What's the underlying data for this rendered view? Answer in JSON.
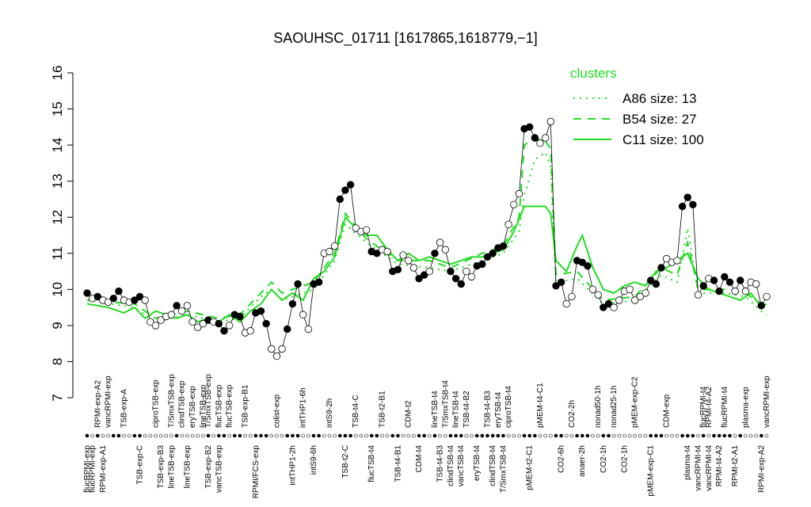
{
  "chart_data": {
    "type": "line",
    "title": "SAOUHSC_01711 [1617865,1618779,−1]",
    "ylim": [
      7,
      16
    ],
    "yticks": [
      7,
      8,
      9,
      10,
      11,
      12,
      13,
      14,
      15,
      16
    ],
    "xlim": [
      1,
      130
    ],
    "color": "#000000",
    "values": [
      9.9,
      9.75,
      9.8,
      9.7,
      9.65,
      9.75,
      9.95,
      9.7,
      9.65,
      9.7,
      9.8,
      9.7,
      9.1,
      9.0,
      9.15,
      9.25,
      9.3,
      9.55,
      9.4,
      9.55,
      9.1,
      8.95,
      9.05,
      9.15,
      9.1,
      9.05,
      8.85,
      9.0,
      9.3,
      9.25,
      8.8,
      8.85,
      9.35,
      9.4,
      9.05,
      8.35,
      8.15,
      8.35,
      8.9,
      9.6,
      10.15,
      9.3,
      8.9,
      10.15,
      10.2,
      11.0,
      11.05,
      11.2,
      12.5,
      12.75,
      12.9,
      11.7,
      11.6,
      11.65,
      11.05,
      11.0,
      11.1,
      11.05,
      10.5,
      10.55,
      10.95,
      10.8,
      10.6,
      10.3,
      10.4,
      10.5,
      11.0,
      11.3,
      11.1,
      10.5,
      10.3,
      10.15,
      10.5,
      10.35,
      10.65,
      10.7,
      10.9,
      11.0,
      11.15,
      11.2,
      11.8,
      12.35,
      12.65,
      14.45,
      14.5,
      14.2,
      14.05,
      14.2,
      14.65,
      10.1,
      10.2,
      9.6,
      9.8,
      10.8,
      10.75,
      10.65,
      10.0,
      9.85,
      9.5,
      9.6,
      9.5,
      9.7,
      9.95,
      10.0,
      9.7,
      9.8,
      9.9,
      10.25,
      10.15,
      10.6,
      10.85,
      10.75,
      10.8,
      12.3,
      12.55,
      12.35,
      9.85,
      10.1,
      10.3,
      10.25,
      9.95,
      10.35,
      10.2,
      9.95,
      10.25,
      9.95,
      10.2,
      10.15,
      9.55,
      9.8
    ],
    "filled": [
      true,
      false,
      true,
      false,
      false,
      true,
      true,
      false,
      false,
      true,
      true,
      false,
      false,
      false,
      false,
      false,
      false,
      true,
      false,
      false,
      false,
      false,
      false,
      true,
      false,
      true,
      true,
      false,
      true,
      true,
      false,
      false,
      true,
      true,
      true,
      false,
      false,
      false,
      true,
      true,
      true,
      false,
      false,
      true,
      true,
      false,
      false,
      false,
      true,
      true,
      true,
      false,
      false,
      false,
      true,
      true,
      false,
      false,
      true,
      true,
      false,
      false,
      false,
      true,
      true,
      false,
      true,
      false,
      false,
      true,
      true,
      true,
      false,
      false,
      true,
      true,
      true,
      true,
      true,
      true,
      false,
      false,
      false,
      true,
      true,
      true,
      false,
      false,
      false,
      true,
      true,
      false,
      false,
      true,
      true,
      true,
      false,
      false,
      true,
      true,
      false,
      false,
      false,
      false,
      false,
      false,
      false,
      true,
      true,
      true,
      false,
      false,
      false,
      true,
      true,
      true,
      false,
      true,
      false,
      true,
      true,
      true,
      true,
      false,
      true,
      false,
      false,
      false,
      true,
      false
    ],
    "top_labels": [
      {
        "x": 3,
        "label": "RPMI-exp-A2"
      },
      {
        "x": 5,
        "label": "vancRPMI-exp"
      },
      {
        "x": 8,
        "label": "TSB-exp-A"
      },
      {
        "x": 14,
        "label": "ciproTSB-exp"
      },
      {
        "x": 17,
        "label": "T/SmxTSB-exp"
      },
      {
        "x": 19,
        "label": "clindTSB-exp"
      },
      {
        "x": 21,
        "label": "eryTSB-exp"
      },
      {
        "x": 23,
        "label": "lineTSB-exp"
      },
      {
        "x": 24,
        "label": "T/SmxTSB-exp"
      },
      {
        "x": 26,
        "label": "flucTSB-exp"
      },
      {
        "x": 28,
        "label": "flucTSB-exp"
      },
      {
        "x": 31,
        "label": "TSB-exp-B1"
      },
      {
        "x": 37,
        "label": "colist-exp"
      },
      {
        "x": 42,
        "label": "intTHP1-6h"
      },
      {
        "x": 47,
        "label": "intS9-2h"
      },
      {
        "x": 52,
        "label": "TSB-t4-C"
      },
      {
        "x": 57,
        "label": "TSB-t2-B1"
      },
      {
        "x": 62,
        "label": "CDM-t2"
      },
      {
        "x": 67,
        "label": "lineTSB-t4"
      },
      {
        "x": 69,
        "label": "T/SmxTSB-t4"
      },
      {
        "x": 71,
        "label": "lineTSB-t4"
      },
      {
        "x": 73,
        "label": "TSB-t4-B2"
      },
      {
        "x": 77,
        "label": "TSB-t4-B3"
      },
      {
        "x": 79,
        "label": "eryTSB-t4"
      },
      {
        "x": 81,
        "label": "ciproTSB-t4"
      },
      {
        "x": 87,
        "label": "pMEM-t4-C1"
      },
      {
        "x": 93,
        "label": "CO2-2h"
      },
      {
        "x": 98,
        "label": "nonad50-1h"
      },
      {
        "x": 101,
        "label": "nonad25-1h"
      },
      {
        "x": 105,
        "label": "pMEM-exp-C2"
      },
      {
        "x": 111,
        "label": "CDM-exp"
      },
      {
        "x": 118,
        "label": "flucRPMI-t4"
      },
      {
        "x": 119,
        "label": "RPMI-t4-A2"
      },
      {
        "x": 122,
        "label": "flucRPMI-t4"
      },
      {
        "x": 126,
        "label": "plasma-exp"
      },
      {
        "x": 130,
        "label": "vancRPMI-exp"
      }
    ],
    "bottom_labels": [
      {
        "x": 1,
        "label": "flucRPMI-exp"
      },
      {
        "x": 2,
        "label": "flucRPMI-exp"
      },
      {
        "x": 4,
        "label": "RPMI-exp-A1"
      },
      {
        "x": 11,
        "label": "TSB-exp-C"
      },
      {
        "x": 15,
        "label": "TSB-exp-B3"
      },
      {
        "x": 17,
        "label": "lineTSB-exp"
      },
      {
        "x": 20,
        "label": "lineTSB-exp"
      },
      {
        "x": 24,
        "label": "TSB-exp-B2"
      },
      {
        "x": 26,
        "label": "vancTSB-exp"
      },
      {
        "x": 33,
        "label": "RPMI/FCS-exp"
      },
      {
        "x": 40,
        "label": "intTHP1-2h"
      },
      {
        "x": 44,
        "label": "intS9-6h"
      },
      {
        "x": 50,
        "label": "TSB-t2-C"
      },
      {
        "x": 55,
        "label": "flucTSB-t4"
      },
      {
        "x": 60,
        "label": "TSB-t4-B1"
      },
      {
        "x": 64,
        "label": "CDM-t4"
      },
      {
        "x": 68,
        "label": "TSB-t4-B3"
      },
      {
        "x": 70,
        "label": "clindTSB-t4"
      },
      {
        "x": 72,
        "label": "vancTSB-t4"
      },
      {
        "x": 75,
        "label": "eryTSB-t4"
      },
      {
        "x": 78,
        "label": "clindTSB-t4"
      },
      {
        "x": 80,
        "label": "T/SmxTSB-t4"
      },
      {
        "x": 85,
        "label": "pMEM-t2-C1"
      },
      {
        "x": 91,
        "label": "CO2-6h"
      },
      {
        "x": 95,
        "label": "anaer-2h"
      },
      {
        "x": 99,
        "label": "CO2-1h"
      },
      {
        "x": 103,
        "label": "CO2-1h"
      },
      {
        "x": 108,
        "label": "pMEM-exp-C1"
      },
      {
        "x": 115,
        "label": "plasma-t4"
      },
      {
        "x": 117,
        "label": "vancRPMI-t4"
      },
      {
        "x": 119,
        "label": "vancRPMI-t4"
      },
      {
        "x": 121,
        "label": "RPMI-t4-A2"
      },
      {
        "x": 124,
        "label": "RPMI-t2-A1"
      },
      {
        "x": 129,
        "label": "RPMI-exp-A2"
      }
    ],
    "legend": {
      "title": "clusters",
      "position": "top-right"
    },
    "series": [
      {
        "name": "A86 size: 13",
        "style": "dotted",
        "color": "#22dd22",
        "x": [
          1,
          10,
          14,
          20,
          26,
          30,
          34,
          36,
          38,
          44,
          48,
          50,
          54,
          60,
          66,
          70,
          76,
          80,
          83,
          84,
          86,
          88,
          89,
          90,
          94,
          99,
          105,
          110,
          113,
          115,
          117,
          122,
          126,
          129,
          130
        ],
        "values": [
          9.7,
          9.5,
          9.1,
          9.3,
          9.1,
          9.2,
          9.8,
          10.0,
          9.7,
          10.0,
          10.8,
          11.8,
          11.3,
          10.7,
          10.6,
          10.5,
          10.8,
          11.0,
          11.6,
          12.6,
          13.6,
          13.8,
          13.4,
          10.2,
          10.3,
          9.6,
          9.7,
          10.4,
          10.2,
          11.7,
          9.9,
          9.9,
          9.8,
          9.4,
          9.3
        ]
      },
      {
        "name": "B54 size: 27",
        "style": "dashed",
        "color": "#22dd22",
        "x": [
          1,
          10,
          14,
          20,
          26,
          30,
          34,
          36,
          38,
          44,
          48,
          50,
          54,
          60,
          66,
          70,
          76,
          80,
          83,
          84,
          86,
          88,
          89,
          90,
          94,
          99,
          105,
          110,
          113,
          115,
          117,
          122,
          126,
          129,
          130
        ],
        "values": [
          9.7,
          9.6,
          9.2,
          9.4,
          9.2,
          9.3,
          9.9,
          10.2,
          9.9,
          10.2,
          11.0,
          12.1,
          11.4,
          10.8,
          10.8,
          10.6,
          11.0,
          11.2,
          12.0,
          14.0,
          14.2,
          14.1,
          13.9,
          10.4,
          10.5,
          9.7,
          9.8,
          10.6,
          10.4,
          11.3,
          10.0,
          10.0,
          9.9,
          9.6,
          9.5
        ]
      },
      {
        "name": "C11 size: 100",
        "style": "solid",
        "color": "#22dd22",
        "x": [
          1,
          5,
          8,
          10,
          12,
          14,
          16,
          18,
          20,
          22,
          24,
          26,
          28,
          30,
          32,
          34,
          36,
          38,
          40,
          42,
          44,
          46,
          48,
          50,
          52,
          54,
          56,
          58,
          60,
          62,
          64,
          66,
          68,
          70,
          72,
          74,
          76,
          78,
          80,
          82,
          84,
          86,
          88,
          89,
          90,
          92,
          94,
          95,
          97,
          99,
          101,
          103,
          105,
          107,
          109,
          111,
          113,
          115,
          117,
          119,
          121,
          123,
          125,
          127,
          129,
          130
        ],
        "values": [
          9.6,
          9.5,
          9.35,
          9.5,
          9.2,
          9.4,
          9.3,
          9.2,
          9.3,
          9.1,
          9.2,
          9.1,
          9.3,
          9.1,
          9.4,
          9.6,
          10.0,
          9.7,
          9.9,
          9.7,
          10.3,
          10.5,
          10.9,
          12.0,
          11.7,
          11.5,
          11.5,
          11.1,
          10.8,
          11.0,
          10.8,
          10.9,
          10.8,
          10.7,
          10.8,
          10.9,
          10.9,
          11.0,
          11.1,
          11.6,
          12.3,
          12.3,
          12.3,
          12.1,
          10.8,
          10.5,
          11.2,
          11.5,
          10.6,
          10.0,
          9.9,
          10.1,
          10.2,
          10.1,
          10.5,
          10.6,
          10.8,
          11.0,
          10.3,
          10.0,
          9.9,
          9.8,
          9.7,
          9.9,
          9.5,
          9.6
        ]
      }
    ]
  }
}
